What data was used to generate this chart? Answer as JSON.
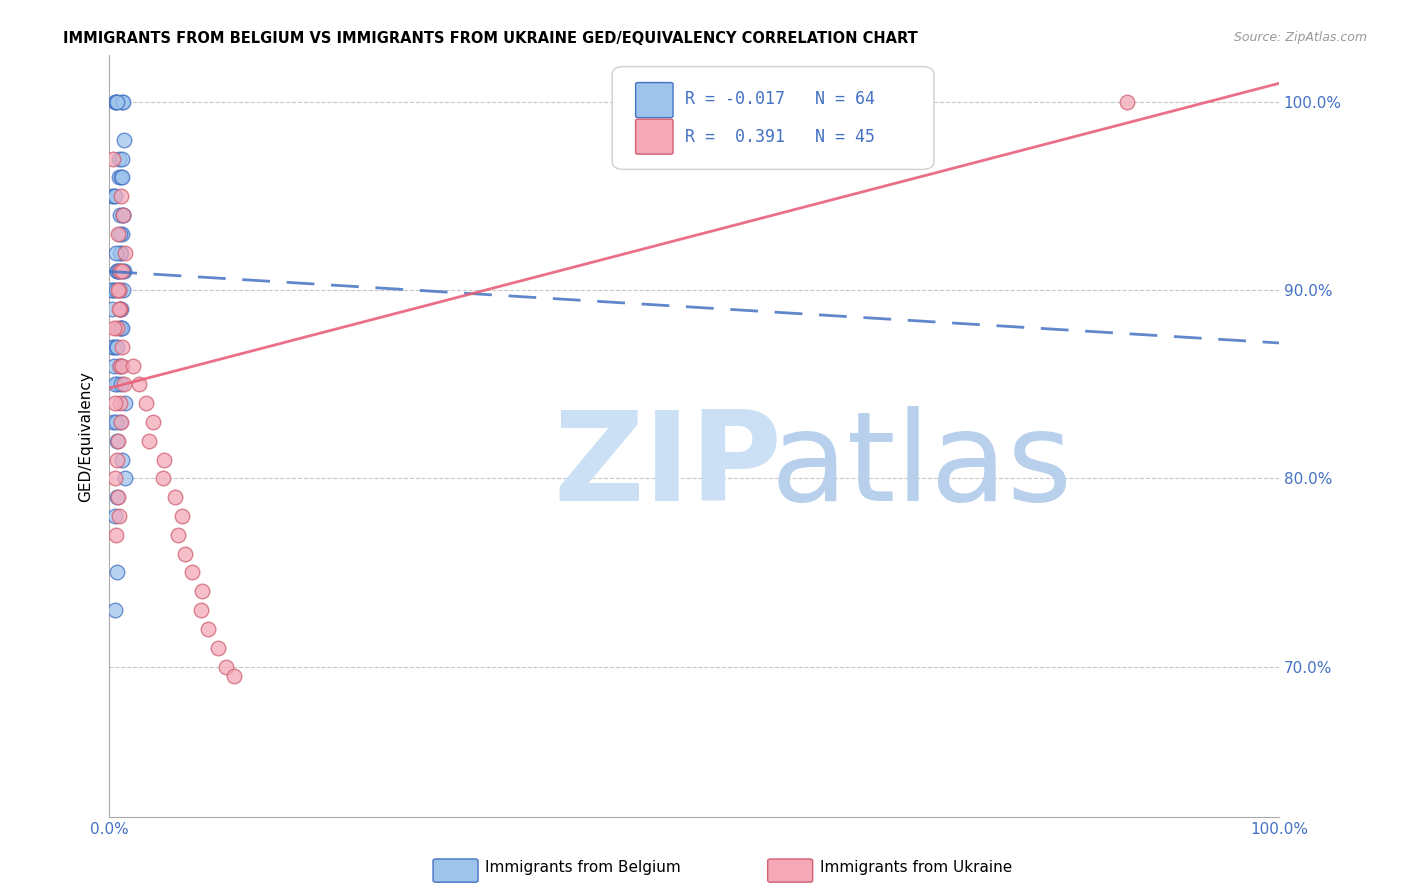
{
  "title": "IMMIGRANTS FROM BELGIUM VS IMMIGRANTS FROM UKRAINE GED/EQUIVALENCY CORRELATION CHART",
  "source": "Source: ZipAtlas.com",
  "ylabel": "GED/Equivalency",
  "xlim": [
    0.0,
    1.0
  ],
  "ylim": [
    0.62,
    1.025
  ],
  "yticks": [
    0.7,
    0.8,
    0.9,
    1.0
  ],
  "ytick_labels": [
    "70.0%",
    "80.0%",
    "90.0%",
    "100.0%"
  ],
  "xtick_labels": [
    "0.0%",
    "",
    "",
    "",
    "",
    "",
    "",
    "",
    "",
    "",
    "100.0%"
  ],
  "legend_r_belgium": "-0.017",
  "legend_n_belgium": "64",
  "legend_r_ukraine": "0.391",
  "legend_n_ukraine": "45",
  "color_belgium": "#9ec4eb",
  "color_ukraine": "#f4a8b8",
  "color_belgium_line": "#4472c4",
  "color_ukraine_line": "#e8607a",
  "watermark_zip_color": "#cce0f5",
  "watermark_atlas_color": "#b8d0ec",
  "bel_line_x0": 0.0,
  "bel_line_y0": 0.91,
  "bel_line_x1": 1.0,
  "bel_line_y1": 0.872,
  "ukr_line_x0": 0.0,
  "ukr_line_y0": 0.848,
  "ukr_line_x1": 1.0,
  "ukr_line_y1": 1.01,
  "belgium_x": [
    0.004,
    0.004,
    0.006,
    0.006,
    0.008,
    0.003,
    0.005,
    0.004,
    0.005,
    0.004,
    0.005,
    0.003,
    0.004,
    0.005,
    0.004,
    0.005,
    0.006,
    0.005,
    0.003,
    0.004,
    0.006,
    0.004,
    0.003,
    0.005,
    0.004,
    0.003,
    0.005,
    0.004,
    0.006,
    0.005,
    0.004,
    0.003,
    0.005,
    0.004,
    0.003,
    0.006,
    0.005,
    0.004,
    0.003,
    0.005,
    0.004,
    0.006,
    0.005,
    0.004,
    0.003,
    0.005,
    0.004,
    0.006,
    0.005,
    0.004,
    0.003,
    0.005,
    0.004,
    0.006,
    0.005,
    0.004,
    0.003,
    0.005,
    0.004,
    0.006,
    0.005,
    0.004,
    0.003,
    0.005
  ],
  "belgium_y": [
    1.0,
    1.0,
    1.0,
    1.0,
    1.0,
    1.0,
    0.98,
    0.97,
    0.97,
    0.96,
    0.96,
    0.96,
    0.95,
    0.95,
    0.95,
    0.94,
    0.94,
    0.94,
    0.93,
    0.93,
    0.92,
    0.92,
    0.92,
    0.91,
    0.91,
    0.91,
    0.91,
    0.91,
    0.91,
    0.9,
    0.9,
    0.9,
    0.9,
    0.9,
    0.9,
    0.89,
    0.89,
    0.89,
    0.89,
    0.88,
    0.88,
    0.88,
    0.88,
    0.87,
    0.87,
    0.87,
    0.87,
    0.86,
    0.86,
    0.86,
    0.85,
    0.85,
    0.85,
    0.84,
    0.83,
    0.83,
    0.83,
    0.82,
    0.81,
    0.8,
    0.79,
    0.78,
    0.75,
    0.73
  ],
  "ukraine_x": [
    0.004,
    0.005,
    0.006,
    0.004,
    0.006,
    0.005,
    0.004,
    0.005,
    0.006,
    0.004,
    0.005,
    0.006,
    0.004,
    0.005,
    0.006,
    0.004,
    0.005,
    0.006,
    0.004,
    0.005,
    0.006,
    0.004,
    0.005,
    0.006,
    0.004,
    0.005,
    0.015,
    0.02,
    0.025,
    0.03,
    0.035,
    0.04,
    0.045,
    0.05,
    0.055,
    0.06,
    0.065,
    0.07,
    0.075,
    0.08,
    0.085,
    0.09,
    0.095,
    0.1,
    0.87
  ],
  "ukraine_y": [
    0.97,
    0.95,
    0.94,
    0.93,
    0.92,
    0.91,
    0.91,
    0.9,
    0.9,
    0.89,
    0.89,
    0.88,
    0.88,
    0.87,
    0.86,
    0.86,
    0.85,
    0.84,
    0.84,
    0.83,
    0.82,
    0.81,
    0.8,
    0.79,
    0.78,
    0.77,
    0.86,
    0.85,
    0.84,
    0.83,
    0.82,
    0.81,
    0.8,
    0.79,
    0.78,
    0.77,
    0.76,
    0.75,
    0.74,
    0.73,
    0.72,
    0.71,
    0.7,
    0.695,
    1.0
  ]
}
